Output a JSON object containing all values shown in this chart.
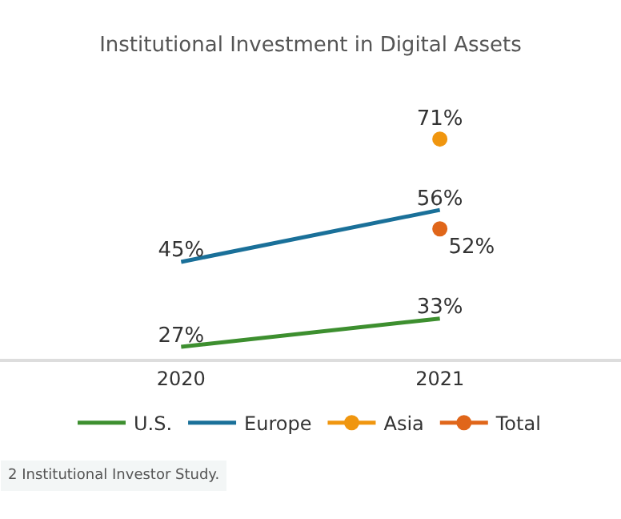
{
  "chart_data": {
    "type": "line",
    "title": "Institutional Investment in Digital Assets",
    "x": [
      2020,
      2021
    ],
    "xlim": [
      2019.3,
      2021.7
    ],
    "xticks": [
      2020,
      2021
    ],
    "tick_labels": "x",
    "series": [
      {
        "name": "U.S.",
        "color": "#3d8f2f",
        "values": [
          27,
          33
        ],
        "value_labels": [
          "27%",
          "33%"
        ]
      },
      {
        "name": "Europe",
        "color": "#1a7099",
        "values": [
          45,
          56
        ],
        "value_labels": [
          "45%",
          "56%"
        ]
      },
      {
        "name": "Asia",
        "color": "#f0960f",
        "x": [
          2021
        ],
        "values": [
          71
        ],
        "value_labels": [
          "71%"
        ],
        "marker": "circle"
      },
      {
        "name": "Total",
        "color": "#e0661a",
        "x": [
          2021
        ],
        "values": [
          52
        ],
        "value_labels": [
          "52%"
        ],
        "marker": "circle"
      }
    ],
    "legend": "bottom",
    "line_style": "solid",
    "annotations": [
      "2 Institutional Investor Study."
    ]
  }
}
